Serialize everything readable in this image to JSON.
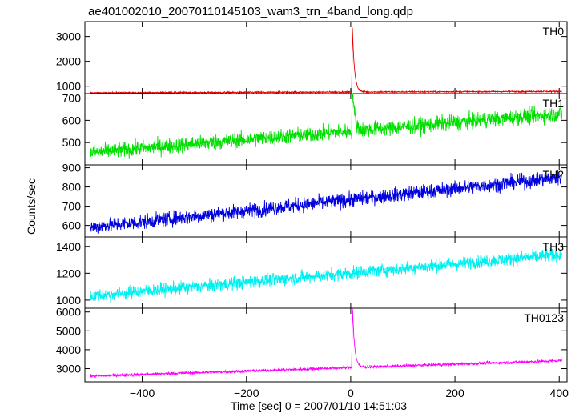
{
  "chart_data": {
    "type": "line",
    "title": "ae401002010_20070110145103_wam3_trn_4band_long.qdp",
    "xlabel": "Time [sec] 0 = 2007/01/10 14:51:03",
    "ylabel": "Counts/sec",
    "xlim": [
      -510,
      415
    ],
    "x_ticks": [
      -400,
      -200,
      0,
      200,
      400
    ],
    "x_tick_labels": [
      "−400",
      "−200",
      "0",
      "200",
      "400"
    ],
    "grid": false,
    "panels": [
      {
        "name": "TH0",
        "color": "#e00000",
        "ylim": [
          700,
          3600
        ],
        "y_ticks": [
          1000,
          2000,
          3000
        ],
        "y_tick_labels": [
          "1000",
          "2000",
          "3000"
        ],
        "baseline_start": 730,
        "baseline_end": 790,
        "noise": 20,
        "peak": {
          "x": 3,
          "value": 3500,
          "decay_sec": 4
        }
      },
      {
        "name": "TH1",
        "color": "#00e000",
        "ylim": [
          400,
          720
        ],
        "y_ticks": [
          500,
          600,
          700
        ],
        "y_tick_labels": [
          "500",
          "600",
          "700"
        ],
        "baseline_start": 455,
        "baseline_end": 630,
        "noise": 25,
        "peak": {
          "x": 3,
          "value": 700,
          "decay_sec": 4
        }
      },
      {
        "name": "TH2",
        "color": "#0000e0",
        "ylim": [
          540,
          915
        ],
        "y_ticks": [
          600,
          700,
          800,
          900
        ],
        "y_tick_labels": [
          "600",
          "700",
          "800",
          "900"
        ],
        "baseline_start": 590,
        "baseline_end": 850,
        "noise": 27,
        "peak": null
      },
      {
        "name": "TH3",
        "color": "#00f0f0",
        "ylim": [
          940,
          1470
        ],
        "y_ticks": [
          1000,
          1200,
          1400
        ],
        "y_tick_labels": [
          "1000",
          "1200",
          "1400"
        ],
        "baseline_start": 1030,
        "baseline_end": 1340,
        "noise": 35,
        "peak": null
      },
      {
        "name": "TH0123",
        "color": "#ff00ff",
        "ylim": [
          2300,
          6200
        ],
        "y_ticks": [
          3000,
          4000,
          5000,
          6000
        ],
        "y_tick_labels": [
          "3000",
          "4000",
          "5000",
          "6000"
        ],
        "baseline_start": 2600,
        "baseline_end": 3420,
        "noise": 55,
        "peak": {
          "x": 3,
          "value": 6200,
          "decay_sec": 4
        }
      }
    ]
  }
}
